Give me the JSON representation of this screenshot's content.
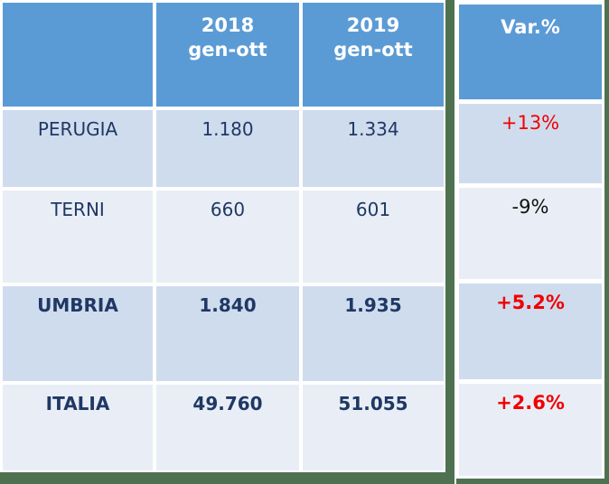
{
  "colors": {
    "header_blue": "#5b9bd5",
    "row_dark": "#cfdcee",
    "row_light": "#e9eef6",
    "frame_green": "#4e7150",
    "text_navy": "#1f3864",
    "var_positive_red": "#f00000",
    "var_negative_black": "#111111"
  },
  "main_table": {
    "header": {
      "col_region": "",
      "col_2018": "2018\ngen-ott",
      "col_2019": "2019\ngen-ott"
    },
    "rows": [
      {
        "label": "PERUGIA",
        "v2018": "1.180",
        "v2019": "1.334"
      },
      {
        "label": "TERNI",
        "v2018": "660",
        "v2019": "601"
      },
      {
        "label": "UMBRIA",
        "v2018": "1.840",
        "v2019": "1.935"
      },
      {
        "label": "ITALIA",
        "v2018": "49.760",
        "v2019": "51.055"
      }
    ]
  },
  "var_panel": {
    "header": "Var.%",
    "values": [
      {
        "text": "+13%"
      },
      {
        "text": "-9%"
      },
      {
        "text": "+5.2%"
      },
      {
        "text": "+2.6%"
      }
    ]
  },
  "chart_data": {
    "type": "table",
    "columns": [
      "",
      "2018 gen-ott",
      "2019 gen-ott",
      "Var.%"
    ],
    "rows": [
      [
        "PERUGIA",
        1180,
        1334,
        "+13%"
      ],
      [
        "TERNI",
        660,
        601,
        "-9%"
      ],
      [
        "UMBRIA",
        1840,
        1935,
        "+5.2%"
      ],
      [
        "ITALIA",
        49760,
        51055,
        "+2.6%"
      ]
    ],
    "notes": "Values shown with Italian thousands separator (e.g. 1.180 = 1180). Bold rows: UMBRIA, ITALIA. Red variations: +13%, +5.2%, +2.6%; black variation: -9%."
  }
}
